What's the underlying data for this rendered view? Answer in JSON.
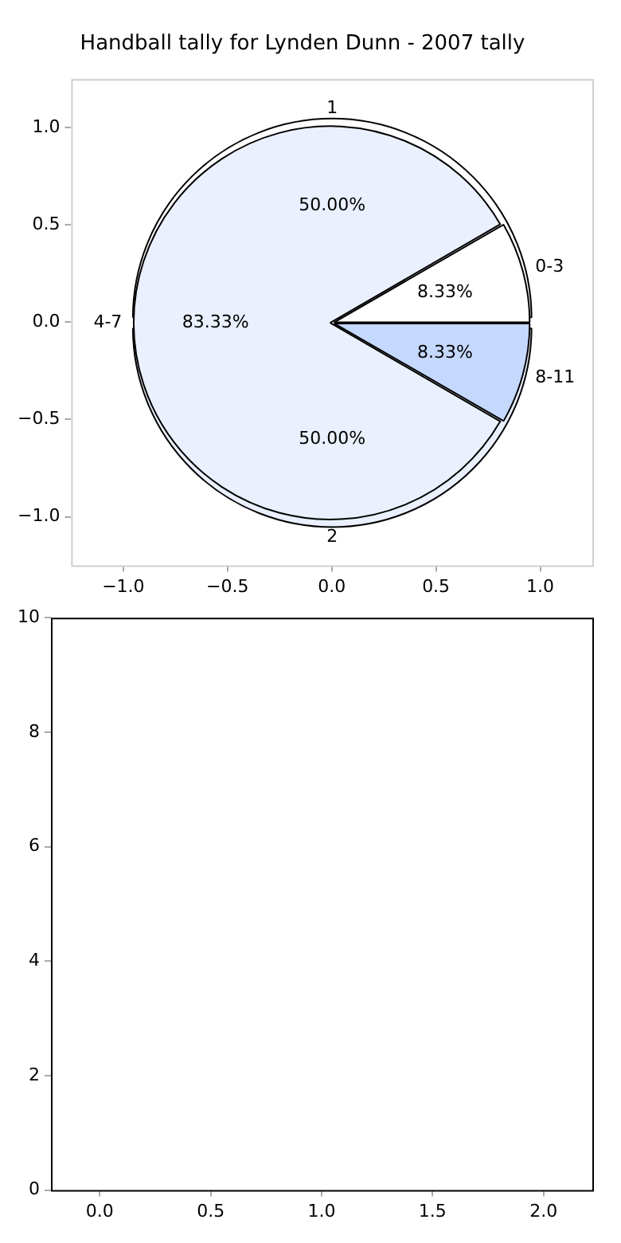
{
  "chart_data": [
    {
      "type": "line",
      "title": "Handball tally for Lynden Dunn - 2007 tally",
      "xlim": [
        -1.25,
        1.25
      ],
      "ylim": [
        -1.25,
        1.25
      ],
      "xticks": [
        {
          "value": -1,
          "label": "−1.0"
        },
        {
          "value": -0.5,
          "label": "−0.5"
        },
        {
          "value": 0,
          "label": "0.0"
        },
        {
          "value": 0.5,
          "label": "0.5"
        },
        {
          "value": 1,
          "label": "1.0"
        }
      ],
      "yticks": [
        {
          "value": -1,
          "label": "−1.0"
        },
        {
          "value": -0.5,
          "label": "−0.5"
        },
        {
          "value": 0,
          "label": "0.0"
        },
        {
          "value": 0.5,
          "label": "0.5"
        },
        {
          "value": 1,
          "label": "1.0"
        }
      ]
    },
    {
      "type": "pie",
      "categories": [
        "1",
        "2"
      ],
      "values": [
        50,
        50
      ],
      "colors": [
        "#ffffff",
        "#eaf0fd"
      ],
      "value_labels": [
        "50.00%",
        "50.00%"
      ]
    },
    {
      "type": "pie",
      "categories": [
        "0-3",
        "8-11",
        "4-7"
      ],
      "values": [
        8.33,
        8.33,
        83.33
      ],
      "colors": [
        "#ffffff",
        "#c5d8fd",
        "#eaf0fd"
      ],
      "value_labels": [
        "8.33%",
        "8.33%",
        "83.33%"
      ]
    },
    {
      "type": "line",
      "xlim": [
        -0.22,
        2.22
      ],
      "ylim": [
        0,
        10
      ],
      "xticks": [
        {
          "value": 0,
          "label": "0.0"
        },
        {
          "value": 0.5,
          "label": "0.5"
        },
        {
          "value": 1,
          "label": "1.0"
        },
        {
          "value": 1.5,
          "label": "1.5"
        },
        {
          "value": 2,
          "label": "2.0"
        }
      ],
      "yticks": [
        0,
        2,
        4,
        6,
        8,
        10
      ]
    }
  ]
}
